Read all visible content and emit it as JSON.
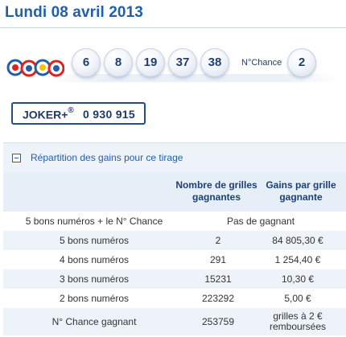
{
  "draw": {
    "title": "Lundi 08 avril 2013",
    "balls": [
      "6",
      "8",
      "19",
      "37",
      "38"
    ],
    "chance_label": "N°Chance",
    "chance_number": "2"
  },
  "colors": {
    "brand_blue": "#1f5fae",
    "navy": "#1d3f73",
    "row_alt": "#eef3f9"
  },
  "joker": {
    "label": "JOKER+",
    "mark": "®",
    "number": "0 930 915"
  },
  "gains": {
    "section_title": "Répartition des gains pour ce tirage",
    "headers": {
      "grilles": "Nombre de grilles gagnantes",
      "gains": "Gains par grille gagnante"
    },
    "rows": [
      {
        "label": "5 bons numéros + le N° Chance",
        "span": "Pas de gagnant"
      },
      {
        "label": "5 bons numéros",
        "grilles": "2",
        "gains": "84 805,30 €"
      },
      {
        "label": "4 bons numéros",
        "grilles": "291",
        "gains": "1 254,40 €"
      },
      {
        "label": "3 bons numéros",
        "grilles": "15231",
        "gains": "10,30 €"
      },
      {
        "label": "2 bons numéros",
        "grilles": "223292",
        "gains": "5,00 €"
      },
      {
        "label": "N° Chance gagnant",
        "grilles": "253759",
        "gains": "grilles à 2 € remboursées"
      }
    ]
  }
}
